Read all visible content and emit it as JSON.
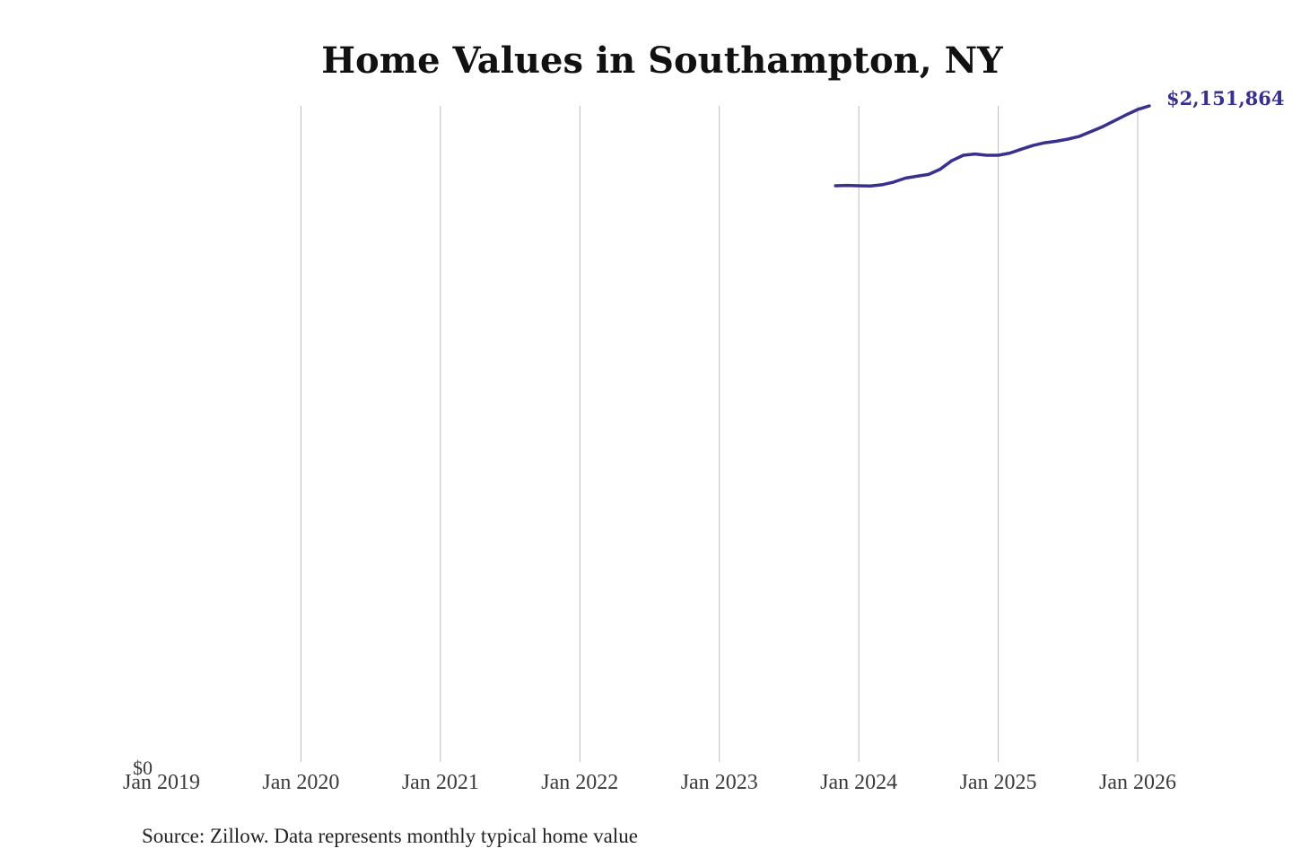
{
  "colors": {
    "series": "#37308f",
    "grid": "#bdbdbd",
    "text": "#111111"
  },
  "chart_data": {
    "type": "line",
    "title": "Home Values in Southampton, NY",
    "xlabel": "",
    "ylabel": "",
    "x_ticks": [
      {
        "date": "2019-01",
        "label": "Jan 2019"
      },
      {
        "date": "2020-01",
        "label": "Jan 2020"
      },
      {
        "date": "2021-01",
        "label": "Jan 2021"
      },
      {
        "date": "2022-01",
        "label": "Jan 2022"
      },
      {
        "date": "2023-01",
        "label": "Jan 2023"
      },
      {
        "date": "2024-01",
        "label": "Jan 2024"
      },
      {
        "date": "2025-01",
        "label": "Jan 2025"
      },
      {
        "date": "2026-01",
        "label": "Jan 2026"
      }
    ],
    "y_tick_label": "$0",
    "ylim": [
      0,
      2151864
    ],
    "grid": "vertical",
    "end_label": "$2,151,864",
    "source": "Source: Zillow. Data represents monthly typical home value",
    "series": [
      {
        "x": [
          "2023-11",
          "2023-12",
          "2024-01",
          "2024-02",
          "2024-03",
          "2024-04",
          "2024-05",
          "2024-06",
          "2024-07",
          "2024-08",
          "2024-09",
          "2024-10",
          "2024-11",
          "2024-12",
          "2025-01",
          "2025-02",
          "2025-03",
          "2025-04",
          "2025-05",
          "2025-06",
          "2025-07",
          "2025-08",
          "2025-09",
          "2025-10",
          "2025-11",
          "2025-12",
          "2026-01",
          "2026-02"
        ],
        "values": [
          1890000,
          1891000,
          1890000,
          1889000,
          1893000,
          1902000,
          1915000,
          1921000,
          1927000,
          1944000,
          1972000,
          1990000,
          1994000,
          1990000,
          1990000,
          1997000,
          2010000,
          2022000,
          2031000,
          2036000,
          2043000,
          2052000,
          2068000,
          2084000,
          2103000,
          2122000,
          2140000,
          2151864
        ]
      }
    ]
  }
}
